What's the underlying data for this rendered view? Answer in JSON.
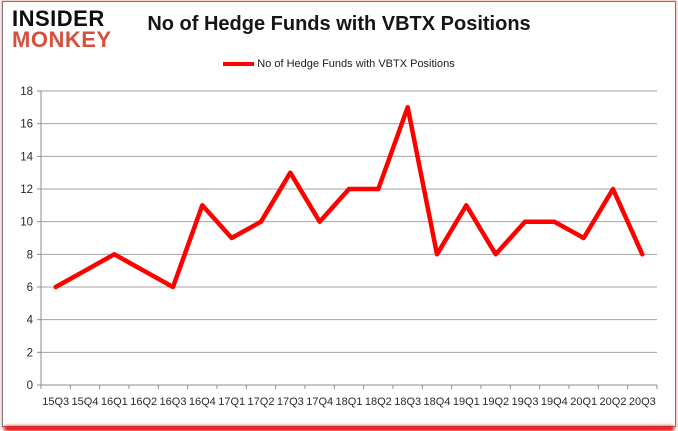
{
  "logo": {
    "line1": "INSIDER",
    "line2": "MONKEY"
  },
  "header": {
    "title": "No of Hedge Funds with VBTX Positions"
  },
  "legend": {
    "label": "No of Hedge Funds with VBTX Positions"
  },
  "colors": {
    "series_red": "#ff0000",
    "gridline": "#a3a3a3",
    "axis": "#8c8c8c",
    "axis_text": "#28282f",
    "frame_border": "#787878",
    "outer_glow_pink": "#f6a6a0",
    "bottom_bar_red": "#f30000",
    "logo_black": "#0d0d0d",
    "logo_red": "#d5503e"
  },
  "chart_data": {
    "type": "line",
    "title": "No of Hedge Funds with VBTX Positions",
    "xlabel": "",
    "ylabel": "",
    "categories": [
      "15Q3",
      "15Q4",
      "16Q1",
      "16Q2",
      "16Q3",
      "16Q4",
      "17Q1",
      "17Q2",
      "17Q3",
      "17Q4",
      "18Q1",
      "18Q2",
      "18Q3",
      "18Q4",
      "19Q1",
      "19Q2",
      "19Q3",
      "19Q4",
      "20Q1",
      "20Q2",
      "20Q3"
    ],
    "series": [
      {
        "name": "No of Hedge Funds with VBTX Positions",
        "color": "#ff0000",
        "values": [
          6,
          7,
          8,
          7,
          6,
          11,
          9,
          10,
          13,
          10,
          12,
          12,
          17,
          8,
          11,
          8,
          10,
          10,
          9,
          12,
          8
        ]
      }
    ],
    "ylim": [
      0,
      18
    ],
    "ytick_step": 2,
    "grid": true,
    "legend_position": "top-center"
  }
}
